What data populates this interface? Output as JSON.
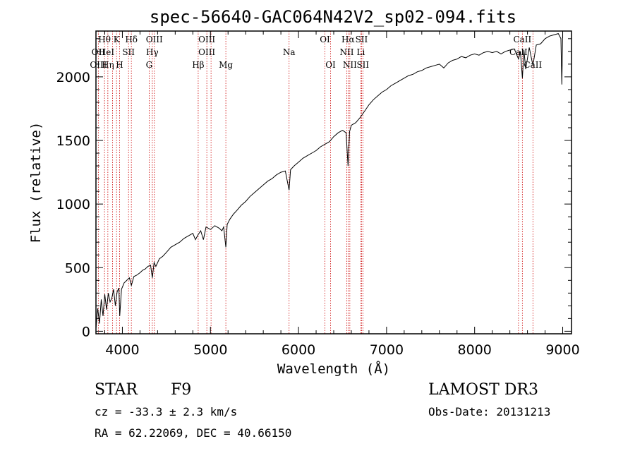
{
  "chart_data": {
    "type": "line",
    "title": "spec-56640-GAC064N42V2_sp02-094.fits",
    "xlabel": "Wavelength (Å)",
    "ylabel": "Flux (relative)",
    "xlim": [
      3700,
      9100
    ],
    "ylim": [
      -20,
      2360
    ],
    "x_ticks": [
      4000,
      5000,
      6000,
      7000,
      8000,
      9000
    ],
    "y_ticks": [
      0,
      500,
      1000,
      1500,
      2000
    ],
    "series": [
      {
        "name": "spectrum",
        "x": [
          3700,
          3720,
          3740,
          3760,
          3780,
          3800,
          3820,
          3840,
          3860,
          3880,
          3900,
          3920,
          3940,
          3960,
          3970,
          3990,
          4020,
          4050,
          4080,
          4102,
          4130,
          4160,
          4200,
          4230,
          4260,
          4290,
          4320,
          4340,
          4360,
          4380,
          4420,
          4460,
          4500,
          4550,
          4600,
          4650,
          4700,
          4750,
          4800,
          4830,
          4861,
          4890,
          4920,
          4950,
          5000,
          5050,
          5100,
          5130,
          5150,
          5175,
          5190,
          5220,
          5260,
          5300,
          5350,
          5400,
          5450,
          5500,
          5550,
          5600,
          5650,
          5700,
          5750,
          5800,
          5850,
          5893,
          5910,
          5950,
          6000,
          6050,
          6100,
          6150,
          6200,
          6250,
          6300,
          6350,
          6400,
          6450,
          6500,
          6540,
          6563,
          6580,
          6600,
          6650,
          6700,
          6750,
          6800,
          6850,
          6900,
          6950,
          7000,
          7050,
          7100,
          7150,
          7200,
          7250,
          7300,
          7350,
          7400,
          7450,
          7500,
          7550,
          7600,
          7650,
          7700,
          7750,
          7800,
          7850,
          7900,
          7950,
          8000,
          8050,
          8100,
          8150,
          8200,
          8250,
          8300,
          8350,
          8400,
          8450,
          8498,
          8520,
          8542,
          8560,
          8580,
          8620,
          8662,
          8700,
          8750,
          8800,
          8850,
          8900,
          8950,
          8980,
          8990,
          9000
        ],
        "values": [
          20,
          180,
          60,
          250,
          120,
          290,
          170,
          300,
          230,
          260,
          330,
          200,
          310,
          340,
          120,
          330,
          380,
          400,
          420,
          360,
          430,
          440,
          460,
          480,
          490,
          510,
          520,
          420,
          540,
          510,
          570,
          590,
          620,
          660,
          680,
          700,
          730,
          750,
          770,
          720,
          760,
          790,
          720,
          820,
          800,
          830,
          810,
          790,
          820,
          660,
          840,
          880,
          920,
          950,
          990,
          1020,
          1060,
          1090,
          1120,
          1150,
          1180,
          1200,
          1230,
          1250,
          1260,
          1110,
          1270,
          1300,
          1330,
          1360,
          1380,
          1400,
          1420,
          1450,
          1470,
          1490,
          1530,
          1560,
          1580,
          1560,
          1300,
          1570,
          1620,
          1640,
          1680,
          1730,
          1780,
          1820,
          1850,
          1880,
          1900,
          1930,
          1950,
          1970,
          1990,
          2010,
          2020,
          2040,
          2050,
          2070,
          2080,
          2090,
          2100,
          2070,
          2110,
          2130,
          2140,
          2160,
          2150,
          2170,
          2180,
          2170,
          2190,
          2200,
          2190,
          2200,
          2180,
          2200,
          2210,
          2220,
          2140,
          2200,
          1990,
          2210,
          2060,
          2230,
          2090,
          2250,
          2260,
          2300,
          2320,
          2330,
          2340,
          2300,
          1940,
          2350
        ]
      }
    ],
    "spectral_lines": [
      {
        "label": "Hθ",
        "wavelength": 3797,
        "row": 0
      },
      {
        "label": "OII",
        "wavelength": 3727,
        "row": 1
      },
      {
        "label": "OIII",
        "wavelength": 3727,
        "row": 2
      },
      {
        "label": "HeI",
        "wavelength": 3820,
        "row": 1
      },
      {
        "label": "Hη",
        "wavelength": 3835,
        "row": 2
      },
      {
        "label": "K",
        "wavelength": 3934,
        "row": 0
      },
      {
        "label": "H",
        "wavelength": 3968,
        "row": 2
      },
      {
        "label": "SII",
        "wavelength": 4070,
        "row": 1
      },
      {
        "label": "Hδ",
        "wavelength": 4102,
        "row": 0
      },
      {
        "label": "OIII",
        "wavelength": 4363,
        "row": 0
      },
      {
        "label": "Hγ",
        "wavelength": 4340,
        "row": 1
      },
      {
        "label": "G",
        "wavelength": 4304,
        "row": 2
      },
      {
        "label": "OIII",
        "wavelength": 4959,
        "row": 0
      },
      {
        "label": "OIII",
        "wavelength": 4959,
        "row": 1
      },
      {
        "label": "Hβ",
        "wavelength": 4861,
        "row": 2
      },
      {
        "label": "Mg",
        "wavelength": 5175,
        "row": 2
      },
      {
        "label": "Na",
        "wavelength": 5893,
        "row": 1
      },
      {
        "label": "OI",
        "wavelength": 6300,
        "row": 0
      },
      {
        "label": "OI",
        "wavelength": 6364,
        "row": 2
      },
      {
        "label": "Hα",
        "wavelength": 6563,
        "row": 0
      },
      {
        "label": "SII",
        "wavelength": 6716,
        "row": 0
      },
      {
        "label": "NII",
        "wavelength": 6548,
        "row": 1
      },
      {
        "label": "Li",
        "wavelength": 6708,
        "row": 1
      },
      {
        "label": "NII",
        "wavelength": 6583,
        "row": 2
      },
      {
        "label": "SII",
        "wavelength": 6731,
        "row": 2
      },
      {
        "label": "CaII",
        "wavelength": 8542,
        "row": 0
      },
      {
        "label": "CaII",
        "wavelength": 8498,
        "row": 1
      },
      {
        "label": "CaII",
        "wavelength": 8662,
        "row": 2
      }
    ],
    "line_marker_wavelengths": [
      3727,
      3797,
      3835,
      3889,
      3934,
      3968,
      4070,
      4102,
      4304,
      4340,
      4363,
      4861,
      4959,
      5007,
      5175,
      5893,
      6300,
      6364,
      6548,
      6563,
      6583,
      6708,
      6716,
      6731,
      8498,
      8542,
      8662
    ]
  },
  "info": {
    "object_class": "STAR",
    "subclass": "F9",
    "survey": "LAMOST DR3",
    "cz": "cz = -33.3 ± 2.3 km/s",
    "obs_date": "Obs-Date: 20131213",
    "coords": "RA =  62.22069, DEC =  40.66150"
  },
  "colors": {
    "line_marker": "#cc0000",
    "spectrum": "#000000"
  }
}
